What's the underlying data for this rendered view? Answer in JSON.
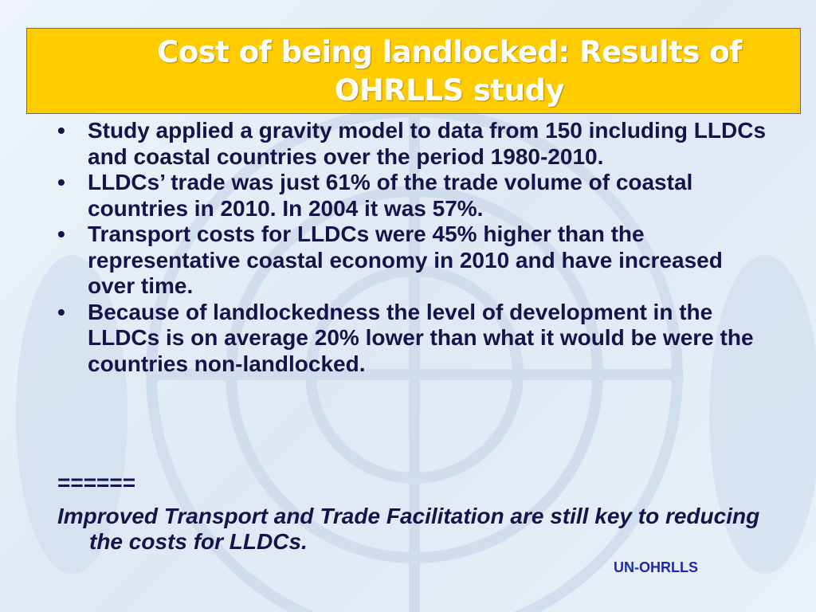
{
  "slide": {
    "title": "Cost of being landlocked: Results of OHRLLS study",
    "bullets": [
      "Study applied a gravity model to data from 150 including LLDCs and coastal countries over the period 1980-2010.",
      "LLDCs’ trade was just 61% of the trade volume of coastal countries in 2010. In 2004 it was 57%.",
      "Transport costs for LLDCs were 45% higher than the representative coastal economy in 2010 and have increased over time.",
      "Because of landlockedness the level of development in the LLDCs is on average 20% lower than what it would be were the countries non-landlocked."
    ],
    "separator": "======",
    "conclusion": "Improved Transport and Trade Facilitation are still key to reducing the costs for LLDCs.",
    "footer": "UN-OHRLLS"
  }
}
